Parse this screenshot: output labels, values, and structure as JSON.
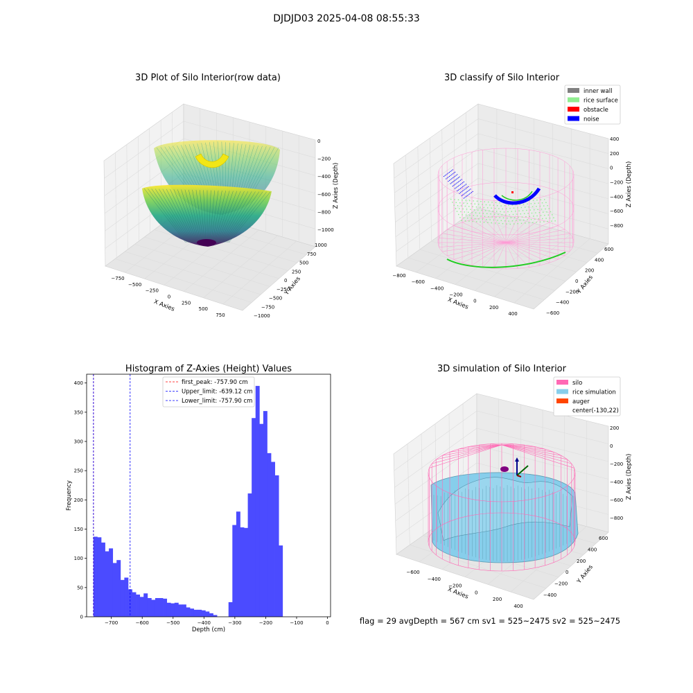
{
  "figure": {
    "title": "DJDJD03 2025-04-08 08:55:33",
    "status_line": "flag = 29  avgDepth = 567 cm  sv1 = 525~2475  sv2 = 525~2475"
  },
  "colors": {
    "inner_wall": "#808080",
    "rice_surface": "#90ee90",
    "obstacle": "#ff0000",
    "noise": "#0000ff",
    "silo": "#ff69b4",
    "rice_simulation": "#87ceeb",
    "auger": "#ff4500",
    "histogram_bar": "#4b4bff",
    "first_peak_line": "#ff0000",
    "limit_line": "#0000ff"
  },
  "panels": {
    "raw": {
      "title": "3D Plot of Silo Interior(row data)",
      "xlabel": "X Axies",
      "ylabel": "Y Axies",
      "zlabel": "Z Axies (Depth)",
      "xticks": [
        "−750",
        "−500",
        "−250",
        "0",
        "250",
        "500",
        "750"
      ],
      "yticks": [
        "1000",
        "750",
        "500",
        "250",
        "0",
        "−250",
        "−500",
        "−750",
        "−1000"
      ],
      "zticks": [
        "0",
        "−200",
        "−400",
        "−600",
        "−800",
        "−1000"
      ]
    },
    "classify": {
      "title": "3D classify of Silo Interior",
      "xlabel": "X Axies",
      "ylabel": "Y Axies",
      "zlabel": "Z Axies (Depth)",
      "xticks": [
        "−800",
        "−600",
        "−400",
        "−200",
        "0",
        "200",
        "400"
      ],
      "yticks": [
        "600",
        "400",
        "200",
        "0",
        "−200",
        "−400",
        "−600"
      ],
      "zticks": [
        "400",
        "200",
        "0",
        "−200",
        "−400",
        "−600",
        "−800"
      ],
      "legend": [
        "inner wall",
        "rice surface",
        "obstacle",
        "noise"
      ]
    },
    "simulation": {
      "title": "3D simulation of Silo Interior",
      "xlabel": "X Axies",
      "ylabel": "Y Axies",
      "zlabel": "Z Axies (Depth)",
      "xticks": [
        "−600",
        "−400",
        "−200",
        "0",
        "200",
        "400"
      ],
      "yticks": [
        "600",
        "400",
        "200",
        "0",
        "−200",
        "−400"
      ],
      "zticks": [
        "200",
        "0",
        "−200",
        "−400",
        "−600",
        "−800"
      ],
      "legend": [
        "silo",
        "rice simulation",
        "auger",
        "center(-130,22)"
      ]
    }
  },
  "chart_data": [
    {
      "type": "scatter",
      "title": "3D Plot of Silo Interior(row data)",
      "xlabel": "X Axies",
      "ylabel": "Y Axies",
      "zlabel": "Z Axies (Depth)",
      "xlim": [
        -750,
        750
      ],
      "ylim": [
        -1000,
        1000
      ],
      "zlim": [
        -1000,
        0
      ]
    },
    {
      "type": "scatter",
      "title": "3D classify of Silo Interior",
      "xlabel": "X Axies",
      "ylabel": "Y Axies",
      "zlabel": "Z Axies (Depth)",
      "xlim": [
        -800,
        400
      ],
      "ylim": [
        -600,
        600
      ],
      "zlim": [
        -800,
        400
      ],
      "legend": [
        "inner wall",
        "rice surface",
        "obstacle",
        "noise"
      ],
      "legend_position": "top-right"
    },
    {
      "type": "bar",
      "title": "Histogram of Z-Axies (Height) Values",
      "xlabel": "Depth (cm)",
      "ylabel": "Frequency",
      "xlim": [
        -780,
        10
      ],
      "ylim": [
        0,
        415
      ],
      "xticks": [
        -700,
        -600,
        -500,
        -400,
        -300,
        -200,
        -100,
        0
      ],
      "xtick_labels": [
        "−700",
        "−600",
        "−500",
        "−400",
        "−300",
        "−200",
        "−100",
        "0"
      ],
      "yticks": [
        0,
        50,
        100,
        150,
        200,
        250,
        300,
        350,
        400
      ],
      "bin_start": -758,
      "bin_width": 12.5,
      "counts": [
        137,
        136,
        127,
        112,
        117,
        92,
        97,
        63,
        67,
        47,
        42,
        38,
        34,
        40,
        32,
        29,
        32,
        32,
        31,
        24,
        23,
        24,
        21,
        21,
        16,
        14,
        12,
        12,
        11,
        9,
        6,
        3,
        0,
        0,
        0,
        25,
        157,
        180,
        153,
        152,
        211,
        340,
        395,
        330,
        352,
        280,
        265,
        242,
        122
      ],
      "vlines": [
        {
          "label": "first_peak: -757.90 cm",
          "x": -757.9,
          "style": "red-dashed"
        },
        {
          "label": "Upper_limit: -639.12 cm",
          "x": -639.12,
          "style": "blue-dashed"
        },
        {
          "label": "Lower_limit: -757.90 cm",
          "x": -757.9,
          "style": "blue-dashed"
        }
      ],
      "legend_position": "top-center"
    },
    {
      "type": "area",
      "title": "3D simulation of Silo Interior",
      "xlabel": "X Axies",
      "ylabel": "Y Axies",
      "zlabel": "Z Axies (Depth)",
      "xlim": [
        -600,
        400
      ],
      "ylim": [
        -400,
        600
      ],
      "zlim": [
        -800,
        200
      ],
      "legend": [
        "silo",
        "rice simulation",
        "auger",
        "center(-130,22)"
      ],
      "legend_position": "top-right"
    }
  ]
}
